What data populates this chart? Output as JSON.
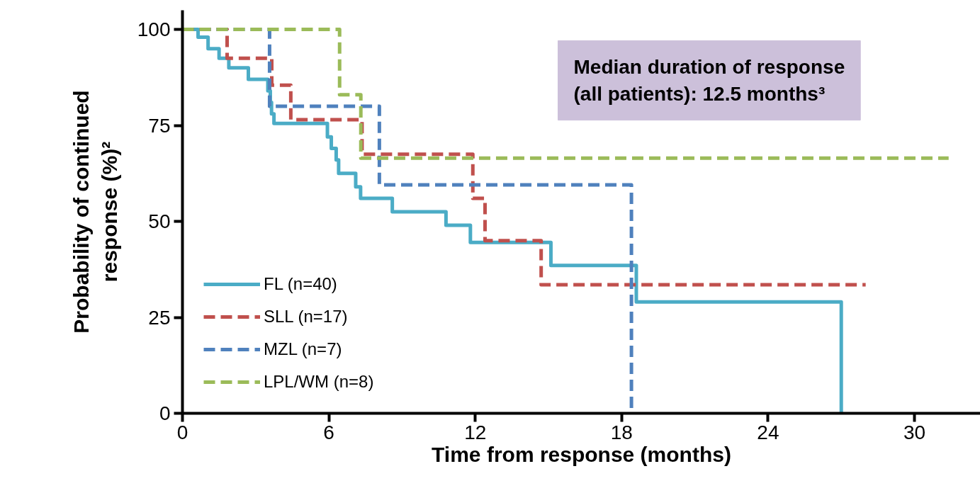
{
  "chart_data": {
    "type": "step",
    "xlabel": "Time from response (months)",
    "ylabel": "Probability of continued\nresponse (%)²",
    "xlim": [
      0,
      32.7
    ],
    "ylim": [
      0,
      105
    ],
    "xticks": [
      0,
      6,
      12,
      18,
      24,
      30
    ],
    "yticks": [
      0,
      25,
      50,
      75,
      100
    ],
    "grid": false,
    "legend": "bottom left",
    "annotations": [
      "Median duration of response\n(all patients): 12.5 months³"
    ],
    "series": [
      {
        "name": "FL (n=40)",
        "color": "#4bacc6",
        "line_style": "solid",
        "x": [
          0,
          0.64,
          1.05,
          1.5,
          1.9,
          2.7,
          3.5,
          3.6,
          3.65,
          3.75,
          5.94,
          6.1,
          6.3,
          6.4,
          7.1,
          7.3,
          8.6,
          10.8,
          11.8,
          15.1,
          18.6,
          27.0
        ],
        "values": [
          100,
          98,
          95,
          92.5,
          90,
          87,
          84,
          81,
          78,
          75.5,
          72,
          69,
          66,
          62.5,
          59,
          56,
          52.5,
          49,
          44.5,
          38.5,
          29,
          0
        ]
      },
      {
        "name": "SLL (n=17)",
        "color": "#c0504d",
        "line_style": "dashed",
        "x": [
          0,
          1.83,
          3.66,
          4.44,
          7.36,
          11.9,
          12.4,
          14.7,
          28.0
        ],
        "values": [
          100,
          92.5,
          85.5,
          76.5,
          67.5,
          56,
          45,
          33.5,
          33.5
        ]
      },
      {
        "name": "MZL (n=7)",
        "color": "#4f81bd",
        "line_style": "dashed",
        "x": [
          0,
          3.57,
          8.07,
          18.4
        ],
        "values": [
          100,
          80,
          59.5,
          0
        ]
      },
      {
        "name": "LPL/WM (n=8)",
        "color": "#9bbb59",
        "line_style": "dashed",
        "x": [
          0,
          6.44,
          7.31,
          31.4
        ],
        "values": [
          100,
          83,
          66.5,
          66.5
        ]
      }
    ]
  }
}
